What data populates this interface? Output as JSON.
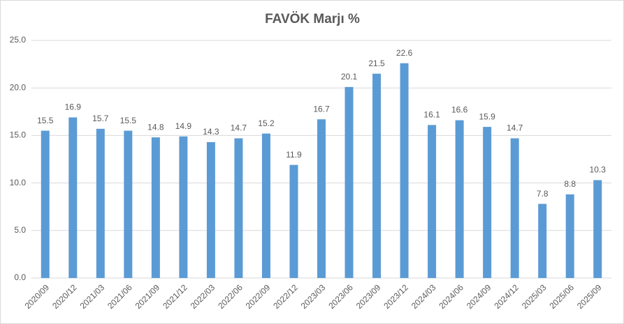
{
  "chart_data": {
    "type": "bar",
    "title": "FAVÖK Marjı %",
    "categories": [
      "2020/09",
      "2020/12",
      "2021/03",
      "2021/06",
      "2021/09",
      "2021/12",
      "2022/03",
      "2022/06",
      "2022/09",
      "2022/12",
      "2023/03",
      "2023/06",
      "2023/09",
      "2023/12",
      "2024/03",
      "2024/06",
      "2024/09",
      "2024/12",
      "2025/03",
      "2025/06",
      "2025/09"
    ],
    "values": [
      15.5,
      16.9,
      15.7,
      15.5,
      14.8,
      14.9,
      14.3,
      14.7,
      15.2,
      11.9,
      16.7,
      20.1,
      21.5,
      22.6,
      16.1,
      16.6,
      15.9,
      14.7,
      7.8,
      8.8,
      10.3
    ],
    "color": "#5b9bd5",
    "ylim": [
      0,
      25
    ],
    "yticks": [
      {
        "value": 0,
        "label": "0.0"
      },
      {
        "value": 5,
        "label": "5.0"
      },
      {
        "value": 10,
        "label": "10.0"
      },
      {
        "value": 15,
        "label": "15.0"
      },
      {
        "value": 20,
        "label": "20.0"
      },
      {
        "value": 25,
        "label": "25.0"
      }
    ],
    "grid": true
  }
}
